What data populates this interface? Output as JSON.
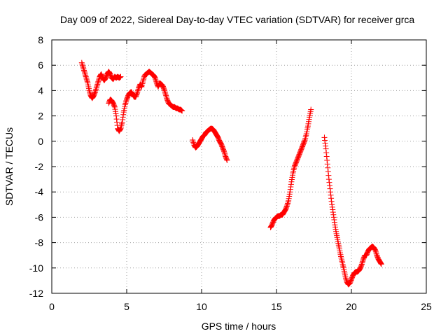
{
  "chart_data": {
    "type": "scatter",
    "title": "Day 009 of 2022, Sidereal Day-to-day VTEC variation (SDTVAR) for receiver grca",
    "xlabel": "GPS time / hours",
    "ylabel": "SDTVAR / TECUs",
    "xlim": [
      0,
      25
    ],
    "ylim": [
      -12,
      8
    ],
    "xticks": [
      0,
      5,
      10,
      15,
      20,
      25
    ],
    "yticks": [
      -12,
      -10,
      -8,
      -6,
      -4,
      -2,
      0,
      2,
      4,
      6,
      8
    ],
    "xtick_labels": [
      "0",
      "5",
      "10",
      "15",
      "20",
      "25"
    ],
    "ytick_labels": [
      "-12",
      "-10",
      "-8",
      "-6",
      "-4",
      "-2",
      "0",
      "2",
      "4",
      "6",
      "8"
    ],
    "grid": true,
    "legend": "none",
    "marker": "plus",
    "color": "#ff0000",
    "segments": [
      {
        "x": [
          2.0,
          2.1,
          2.2,
          2.3,
          2.4,
          2.5,
          2.6,
          2.7,
          2.8,
          2.9,
          3.0,
          3.1,
          3.2,
          3.3,
          3.4,
          3.5,
          3.6,
          3.7,
          3.8,
          3.9,
          4.0,
          4.1,
          4.2,
          4.3,
          4.4,
          4.5,
          4.6
        ],
        "y": [
          6.2,
          5.8,
          5.4,
          5.0,
          4.6,
          4.0,
          3.6,
          3.4,
          3.6,
          3.9,
          4.3,
          4.7,
          5.1,
          5.3,
          5.0,
          4.8,
          5.0,
          5.3,
          5.5,
          5.3,
          5.0,
          4.9,
          5.1,
          5.0,
          5.1,
          5.0,
          5.1
        ]
      },
      {
        "x": [
          3.8,
          3.9,
          4.0,
          4.1,
          4.2,
          4.3,
          4.4,
          4.5,
          4.6,
          4.7,
          4.8,
          4.9,
          5.0,
          5.1,
          5.2,
          5.3,
          5.4,
          5.5,
          5.6,
          5.7,
          5.8,
          5.9,
          6.0,
          6.1,
          6.2,
          6.3,
          6.4,
          6.5,
          6.6,
          6.7,
          6.8,
          6.9,
          7.0,
          7.1,
          7.2,
          7.3,
          7.4,
          7.5,
          7.6,
          7.7,
          7.8,
          7.9,
          8.0,
          8.1,
          8.2,
          8.3,
          8.4,
          8.5,
          8.6,
          8.7
        ],
        "y": [
          3.0,
          3.3,
          3.2,
          3.0,
          2.7,
          2.0,
          1.0,
          0.8,
          1.0,
          1.5,
          2.3,
          2.9,
          3.3,
          3.6,
          3.8,
          3.9,
          3.7,
          3.5,
          3.5,
          3.8,
          4.2,
          4.5,
          4.3,
          4.8,
          5.2,
          5.3,
          5.4,
          5.5,
          5.4,
          5.3,
          5.2,
          5.0,
          4.6,
          4.3,
          4.6,
          4.5,
          4.4,
          4.1,
          3.7,
          3.3,
          3.0,
          2.9,
          2.8,
          2.7,
          2.7,
          2.6,
          2.6,
          2.5,
          2.5,
          2.4
        ]
      },
      {
        "x": [
          9.4,
          9.5,
          9.6,
          9.7,
          9.8,
          9.9,
          10.0,
          10.1,
          10.2,
          10.3,
          10.4,
          10.5,
          10.6,
          10.7,
          10.8,
          10.9,
          11.0,
          11.1,
          11.2,
          11.3,
          11.4,
          11.5,
          11.6,
          11.7
        ],
        "y": [
          0.1,
          -0.3,
          -0.5,
          -0.4,
          -0.2,
          0.0,
          0.2,
          0.4,
          0.5,
          0.7,
          0.8,
          0.9,
          1.0,
          1.0,
          0.9,
          0.7,
          0.5,
          0.3,
          0.0,
          -0.2,
          -0.5,
          -0.8,
          -1.2,
          -1.5
        ]
      },
      {
        "x": [
          14.6,
          14.7,
          14.8,
          14.9,
          15.0,
          15.1,
          15.2,
          15.3,
          15.4,
          15.5,
          15.6,
          15.7,
          15.8,
          15.9,
          16.0,
          16.1,
          16.2,
          16.3,
          16.4,
          16.5,
          16.6,
          16.7,
          16.8,
          16.9,
          17.0,
          17.1,
          17.2,
          17.3
        ],
        "y": [
          -6.8,
          -6.6,
          -6.3,
          -6.1,
          -6.0,
          -5.9,
          -5.9,
          -5.8,
          -5.8,
          -5.6,
          -5.4,
          -5.1,
          -4.7,
          -4.0,
          -3.2,
          -2.5,
          -2.0,
          -1.7,
          -1.4,
          -1.1,
          -0.8,
          -0.5,
          -0.2,
          0.1,
          0.6,
          1.2,
          1.9,
          2.5
        ]
      },
      {
        "x": [
          18.2,
          18.3,
          18.4,
          18.5,
          18.6,
          18.7,
          18.8,
          18.9,
          19.0,
          19.1,
          19.2,
          19.3,
          19.4,
          19.5,
          19.6,
          19.7,
          19.8,
          19.9,
          20.0,
          20.1,
          20.2,
          20.3,
          20.4,
          20.5,
          20.6,
          20.7,
          20.8,
          20.9,
          21.0,
          21.1,
          21.2,
          21.3,
          21.4,
          21.5,
          21.6,
          21.7,
          21.8,
          21.9,
          22.0
        ],
        "y": [
          0.3,
          -0.6,
          -1.8,
          -3.0,
          -4.0,
          -5.0,
          -5.8,
          -6.6,
          -7.3,
          -7.9,
          -8.5,
          -9.1,
          -9.6,
          -10.1,
          -10.7,
          -11.1,
          -11.3,
          -11.2,
          -10.9,
          -10.6,
          -10.4,
          -10.3,
          -10.3,
          -10.2,
          -10.0,
          -9.7,
          -9.3,
          -9.0,
          -9.0,
          -8.7,
          -8.5,
          -8.4,
          -8.3,
          -8.4,
          -8.6,
          -9.0,
          -9.3,
          -9.5,
          -9.7
        ]
      }
    ]
  }
}
